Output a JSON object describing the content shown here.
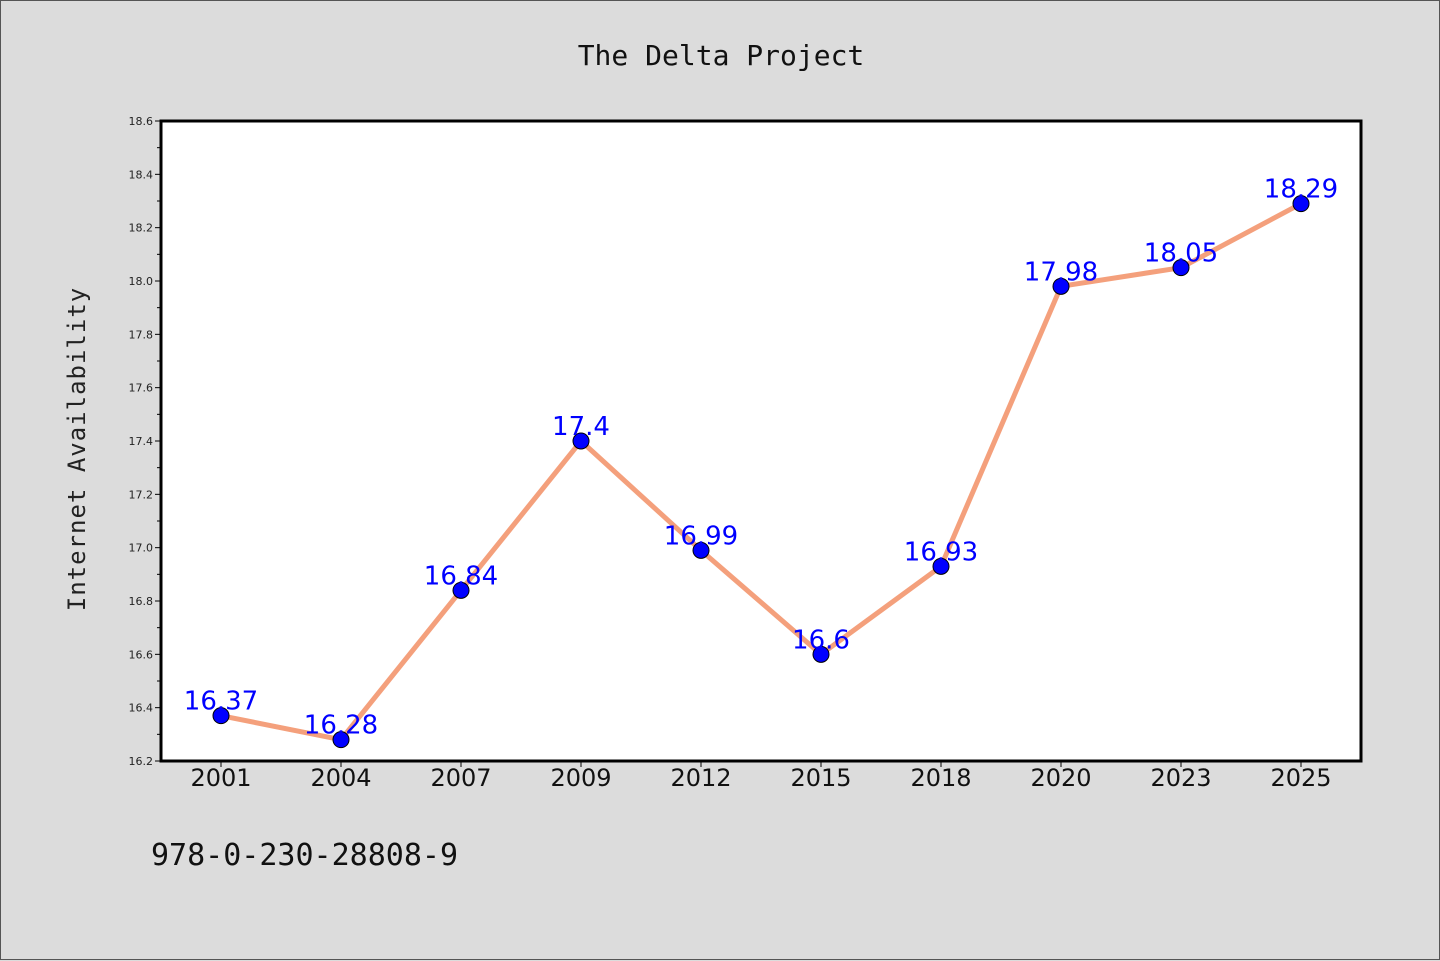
{
  "chart_data": {
    "type": "line",
    "title": "The Delta Project",
    "xlabel": "",
    "ylabel": "Internet Availability",
    "categories": [
      "2001",
      "2004",
      "2007",
      "2009",
      "2012",
      "2015",
      "2018",
      "2020",
      "2023",
      "2025"
    ],
    "series": [
      {
        "values": [
          16.37,
          16.28,
          16.84,
          17.4,
          16.99,
          16.6,
          16.93,
          17.98,
          18.05,
          18.29
        ],
        "labels": [
          "16.37",
          "16.28",
          "16.84",
          "17.4",
          "16.99",
          "16.6",
          "16.93",
          "17.98",
          "18.05",
          "18.29"
        ],
        "line_color": "#f4a07c",
        "marker_color": "#0000ff",
        "label_color": "#0000ff"
      }
    ],
    "ylim": [
      16.2,
      18.6
    ],
    "yticks": [
      "16.2",
      "16.4",
      "16.6",
      "16.8",
      "17.0",
      "17.2",
      "17.4",
      "17.6",
      "17.8",
      "18.0",
      "18.2",
      "18.4",
      "18.6"
    ],
    "grid": false,
    "legend": "none"
  },
  "footer": {
    "isbn": "978-0-230-28808-9"
  },
  "colors": {
    "background": "#dcdcdc",
    "plot_background": "#ffffff",
    "axes": "#000000"
  }
}
